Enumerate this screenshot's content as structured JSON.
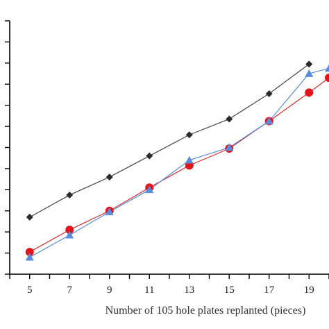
{
  "chart_data": {
    "type": "line",
    "title": "",
    "xlabel": "Number of 105 hole plates replanted (pieces)",
    "ylabel": "",
    "x": [
      5,
      7,
      9,
      11,
      13,
      15,
      17,
      19,
      20
    ],
    "x_ticks": [
      "5",
      "7",
      "9",
      "11",
      "13",
      "15",
      "17",
      "19"
    ],
    "xlim": [
      4,
      20
    ],
    "ylim": [
      0,
      12
    ],
    "y_tick_count": 13,
    "y_tick_labels_visible": false,
    "grid": false,
    "legend": "none",
    "series": [
      {
        "marker": "diamond",
        "color": "#2b2b2b",
        "line_color": "#444444",
        "x": [
          5,
          7,
          9,
          11,
          13,
          15,
          17,
          19
        ],
        "values": [
          2.7,
          3.75,
          4.6,
          5.6,
          6.6,
          7.35,
          8.55,
          9.95
        ]
      },
      {
        "marker": "circle",
        "color": "#e4141b",
        "line_color": "#d9282a",
        "x": [
          5,
          7,
          9,
          11,
          13,
          15,
          17,
          19,
          20
        ],
        "values": [
          1.05,
          2.1,
          3.0,
          4.1,
          5.15,
          5.95,
          7.25,
          8.6,
          9.3
        ]
      },
      {
        "marker": "triangle",
        "color": "#5b8cdc",
        "line_color": "#5b8cdc",
        "x": [
          5,
          7,
          9,
          11,
          13,
          15,
          17,
          19,
          20
        ],
        "values": [
          0.8,
          1.85,
          2.95,
          4.0,
          5.4,
          6.0,
          7.25,
          9.5,
          9.75
        ]
      }
    ]
  }
}
